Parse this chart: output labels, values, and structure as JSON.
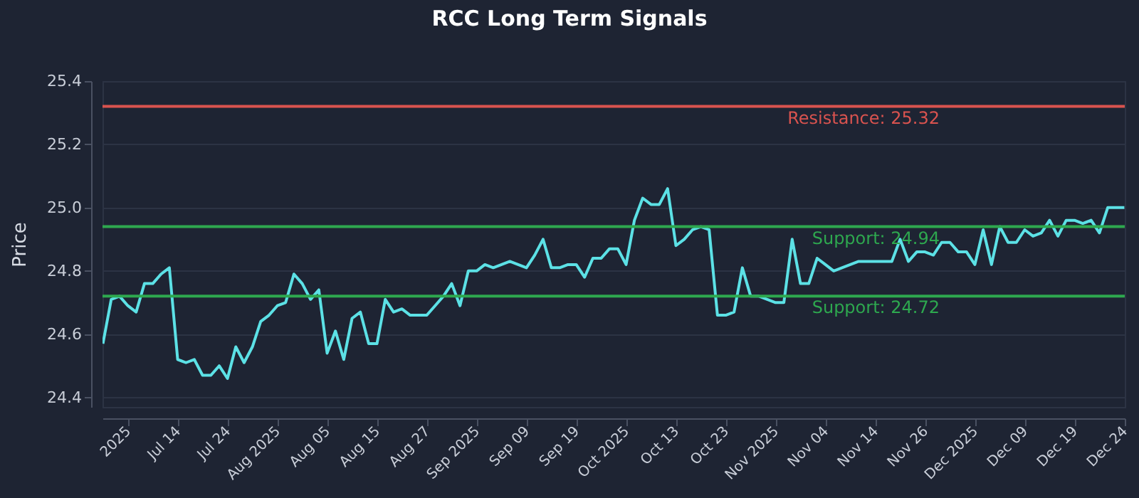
{
  "chart_data": {
    "type": "line",
    "title": "RCC Long Term Signals",
    "ylabel": "Price",
    "categories": [
      null,
      null,
      null,
      "2025",
      null,
      null,
      null,
      null,
      null,
      "Jul 14",
      null,
      null,
      null,
      null,
      null,
      "Jul 24",
      null,
      null,
      null,
      null,
      null,
      "Aug 2025",
      null,
      null,
      null,
      null,
      null,
      "Aug 05",
      null,
      null,
      null,
      null,
      null,
      "Aug 15",
      null,
      null,
      null,
      null,
      null,
      "Aug 27",
      null,
      null,
      null,
      null,
      null,
      "Sep 2025",
      null,
      null,
      null,
      null,
      null,
      "Sep 09",
      null,
      null,
      null,
      null,
      null,
      "Sep 19",
      null,
      null,
      null,
      null,
      null,
      "Oct 2025",
      null,
      null,
      null,
      null,
      null,
      "Oct 13",
      null,
      null,
      null,
      null,
      null,
      "Oct 23",
      null,
      null,
      null,
      null,
      null,
      "Nov 2025",
      null,
      null,
      null,
      null,
      null,
      "Nov 04",
      null,
      null,
      null,
      null,
      null,
      "Nov 14",
      null,
      null,
      null,
      null,
      null,
      "Nov 26",
      null,
      null,
      null,
      null,
      null,
      "Dec 2025",
      null,
      null,
      null,
      null,
      null,
      "Dec 09",
      null,
      null,
      null,
      null,
      null,
      "Dec 19",
      null,
      null,
      null,
      null,
      null,
      "Dec 24"
    ],
    "series": [
      {
        "color": "#5ce1e6",
        "values": [
          24.57,
          24.71,
          24.72,
          24.69,
          24.67,
          24.76,
          24.76,
          24.79,
          24.81,
          24.52,
          24.51,
          24.52,
          24.47,
          24.47,
          24.5,
          24.46,
          24.56,
          24.51,
          24.56,
          24.64,
          24.66,
          24.69,
          24.7,
          24.79,
          24.76,
          24.71,
          24.74,
          24.54,
          24.61,
          24.52,
          24.65,
          24.67,
          24.57,
          24.57,
          24.71,
          24.67,
          24.68,
          24.66,
          24.66,
          24.66,
          24.69,
          24.72,
          24.76,
          24.69,
          24.8,
          24.8,
          24.82,
          24.81,
          24.82,
          24.83,
          24.82,
          24.81,
          24.85,
          24.9,
          24.81,
          24.81,
          24.82,
          24.82,
          24.78,
          24.84,
          24.84,
          24.87,
          24.87,
          24.82,
          24.96,
          25.03,
          25.01,
          25.01,
          25.06,
          24.88,
          24.9,
          24.93,
          24.94,
          24.93,
          24.66,
          24.66,
          24.67,
          24.81,
          24.72,
          24.72,
          24.71,
          24.7,
          24.7,
          24.9,
          24.76,
          24.76,
          24.84,
          24.82,
          24.8,
          24.81,
          24.82,
          24.83,
          24.83,
          24.83,
          24.83,
          24.83,
          24.9,
          24.83,
          24.86,
          24.86,
          24.85,
          24.89,
          24.89,
          24.86,
          24.86,
          24.82,
          24.93,
          24.82,
          24.94,
          24.89,
          24.89,
          24.93,
          24.91,
          24.92,
          24.96,
          24.91,
          24.96,
          24.96,
          24.95,
          24.96,
          24.92,
          25.0,
          25.0,
          25.0
        ]
      }
    ],
    "ylim": [
      24.37,
      25.4
    ],
    "yticks": [
      24.4,
      24.6,
      24.8,
      {
        "value": 25,
        "label": "25.0"
      },
      25.2,
      25.4
    ],
    "grid": "y",
    "ref_lines": [
      {
        "axis": "y",
        "value": 25.32,
        "label": "Resistance: 25.32",
        "color": "#d9534f"
      },
      {
        "axis": "y",
        "value": 24.94,
        "label": "Support: 24.94",
        "color": "#2ea84f"
      },
      {
        "axis": "y",
        "value": 24.72,
        "label": "Support: 24.72",
        "color": "#2ea84f"
      }
    ]
  }
}
